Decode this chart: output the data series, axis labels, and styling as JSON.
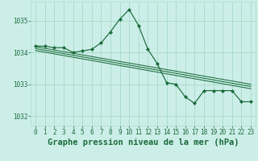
{
  "background_color": "#cceee8",
  "grid_color": "#aaddcc",
  "line_color": "#1a6b3a",
  "marker_color": "#1a6b3a",
  "title": "Graphe pression niveau de la mer (hPa)",
  "ylim": [
    1031.7,
    1035.6
  ],
  "yticks": [
    1032,
    1033,
    1034,
    1035
  ],
  "xticks": [
    0,
    1,
    2,
    3,
    4,
    5,
    6,
    7,
    8,
    9,
    10,
    11,
    12,
    13,
    14,
    15,
    16,
    17,
    18,
    19,
    20,
    21,
    22,
    23
  ],
  "xlim": [
    -0.5,
    23.5
  ],
  "main_x": [
    0,
    1,
    2,
    3,
    4,
    5,
    6,
    7,
    8,
    9,
    10,
    11,
    12,
    13,
    14,
    15,
    16,
    17,
    18,
    19,
    20,
    21,
    22,
    23
  ],
  "main_y": [
    1034.2,
    1034.2,
    1034.15,
    1034.15,
    1034.0,
    1034.05,
    1034.1,
    1034.3,
    1034.65,
    1035.05,
    1035.35,
    1034.85,
    1034.1,
    1033.65,
    1033.05,
    1033.0,
    1032.6,
    1032.4,
    1032.8,
    1032.8,
    1032.8,
    1032.8,
    1032.45,
    1032.45
  ],
  "trend_lines": [
    {
      "x": [
        0,
        23
      ],
      "y0": 1034.18,
      "y1": 1033.0
    },
    {
      "x": [
        0,
        23
      ],
      "y0": 1034.12,
      "y1": 1032.93
    },
    {
      "x": [
        0,
        23
      ],
      "y0": 1034.06,
      "y1": 1032.86
    }
  ],
  "title_fontsize": 7.5,
  "tick_fontsize": 5.5,
  "tick_color": "#1a6b3a",
  "label_color": "#1a6b3a"
}
